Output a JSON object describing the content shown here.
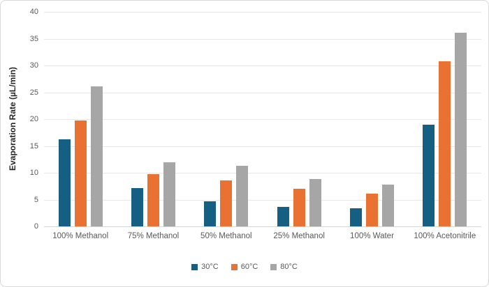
{
  "chart_data": {
    "type": "bar",
    "title": "",
    "xlabel": "",
    "ylabel": "Evaporation Rate (µL/min)",
    "ylim": [
      0,
      40
    ],
    "ytick_step": 5,
    "grid": "horizontal",
    "legend_position": "bottom",
    "categories": [
      "100% Methanol",
      "75% Methanol",
      "50% Methanol",
      "25% Methanol",
      "100% Water",
      "100% Acetonitrile"
    ],
    "series": [
      {
        "name": "30°C",
        "color": "#156082",
        "values": [
          16.2,
          7.2,
          4.7,
          3.7,
          3.4,
          19.0
        ]
      },
      {
        "name": "60°C",
        "color": "#E97132",
        "values": [
          19.8,
          9.7,
          8.6,
          7.0,
          6.1,
          30.8
        ]
      },
      {
        "name": "80°C",
        "color": "#A6A6A6",
        "values": [
          26.1,
          12.0,
          11.3,
          8.9,
          7.8,
          36.1
        ]
      }
    ],
    "gridline_color": "#E7E7E7",
    "axis_line_color": "#D6D6D6",
    "tick_label_color": "#595959",
    "frame_border_color": "#D9D9D9"
  }
}
